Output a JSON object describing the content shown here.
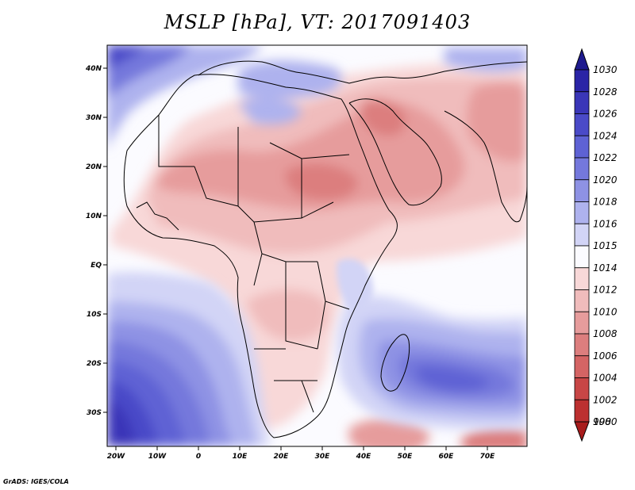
{
  "title": "MSLP [hPa], VT: 2017091403",
  "credit": "GrADS: IGES/COLA",
  "x_ticks": [
    "20W",
    "10W",
    "0",
    "10E",
    "20E",
    "30E",
    "40E",
    "50E",
    "60E",
    "70E"
  ],
  "y_ticks": [
    "40N",
    "30N",
    "20N",
    "10N",
    "EQ",
    "10S",
    "20S",
    "30S"
  ],
  "colorbar": {
    "top_arrow": "1030",
    "bottom_arrow": "998",
    "levels": [
      {
        "label": "1028",
        "color": "#2a24a6"
      },
      {
        "label": "1026",
        "color": "#3a36b8"
      },
      {
        "label": "1024",
        "color": "#4a4ac8"
      },
      {
        "label": "1022",
        "color": "#5e62d4"
      },
      {
        "label": "1020",
        "color": "#7478dc"
      },
      {
        "label": "1018",
        "color": "#8e92e4"
      },
      {
        "label": "1016",
        "color": "#aeb2ee"
      },
      {
        "label": "1015",
        "color": "#d2d4f6"
      },
      {
        "label": "1014",
        "color": "#fbfbff"
      },
      {
        "label": "1012",
        "color": "#f8d8d8"
      },
      {
        "label": "1010",
        "color": "#f0bcbc"
      },
      {
        "label": "1008",
        "color": "#e69c9c"
      },
      {
        "label": "1006",
        "color": "#dc7e7e"
      },
      {
        "label": "1004",
        "color": "#d46464"
      },
      {
        "label": "1002",
        "color": "#c84646"
      },
      {
        "label": "1000",
        "color": "#bc3030"
      }
    ],
    "top_color": "#1e1a8e",
    "bottom_color": "#a81c1c"
  }
}
